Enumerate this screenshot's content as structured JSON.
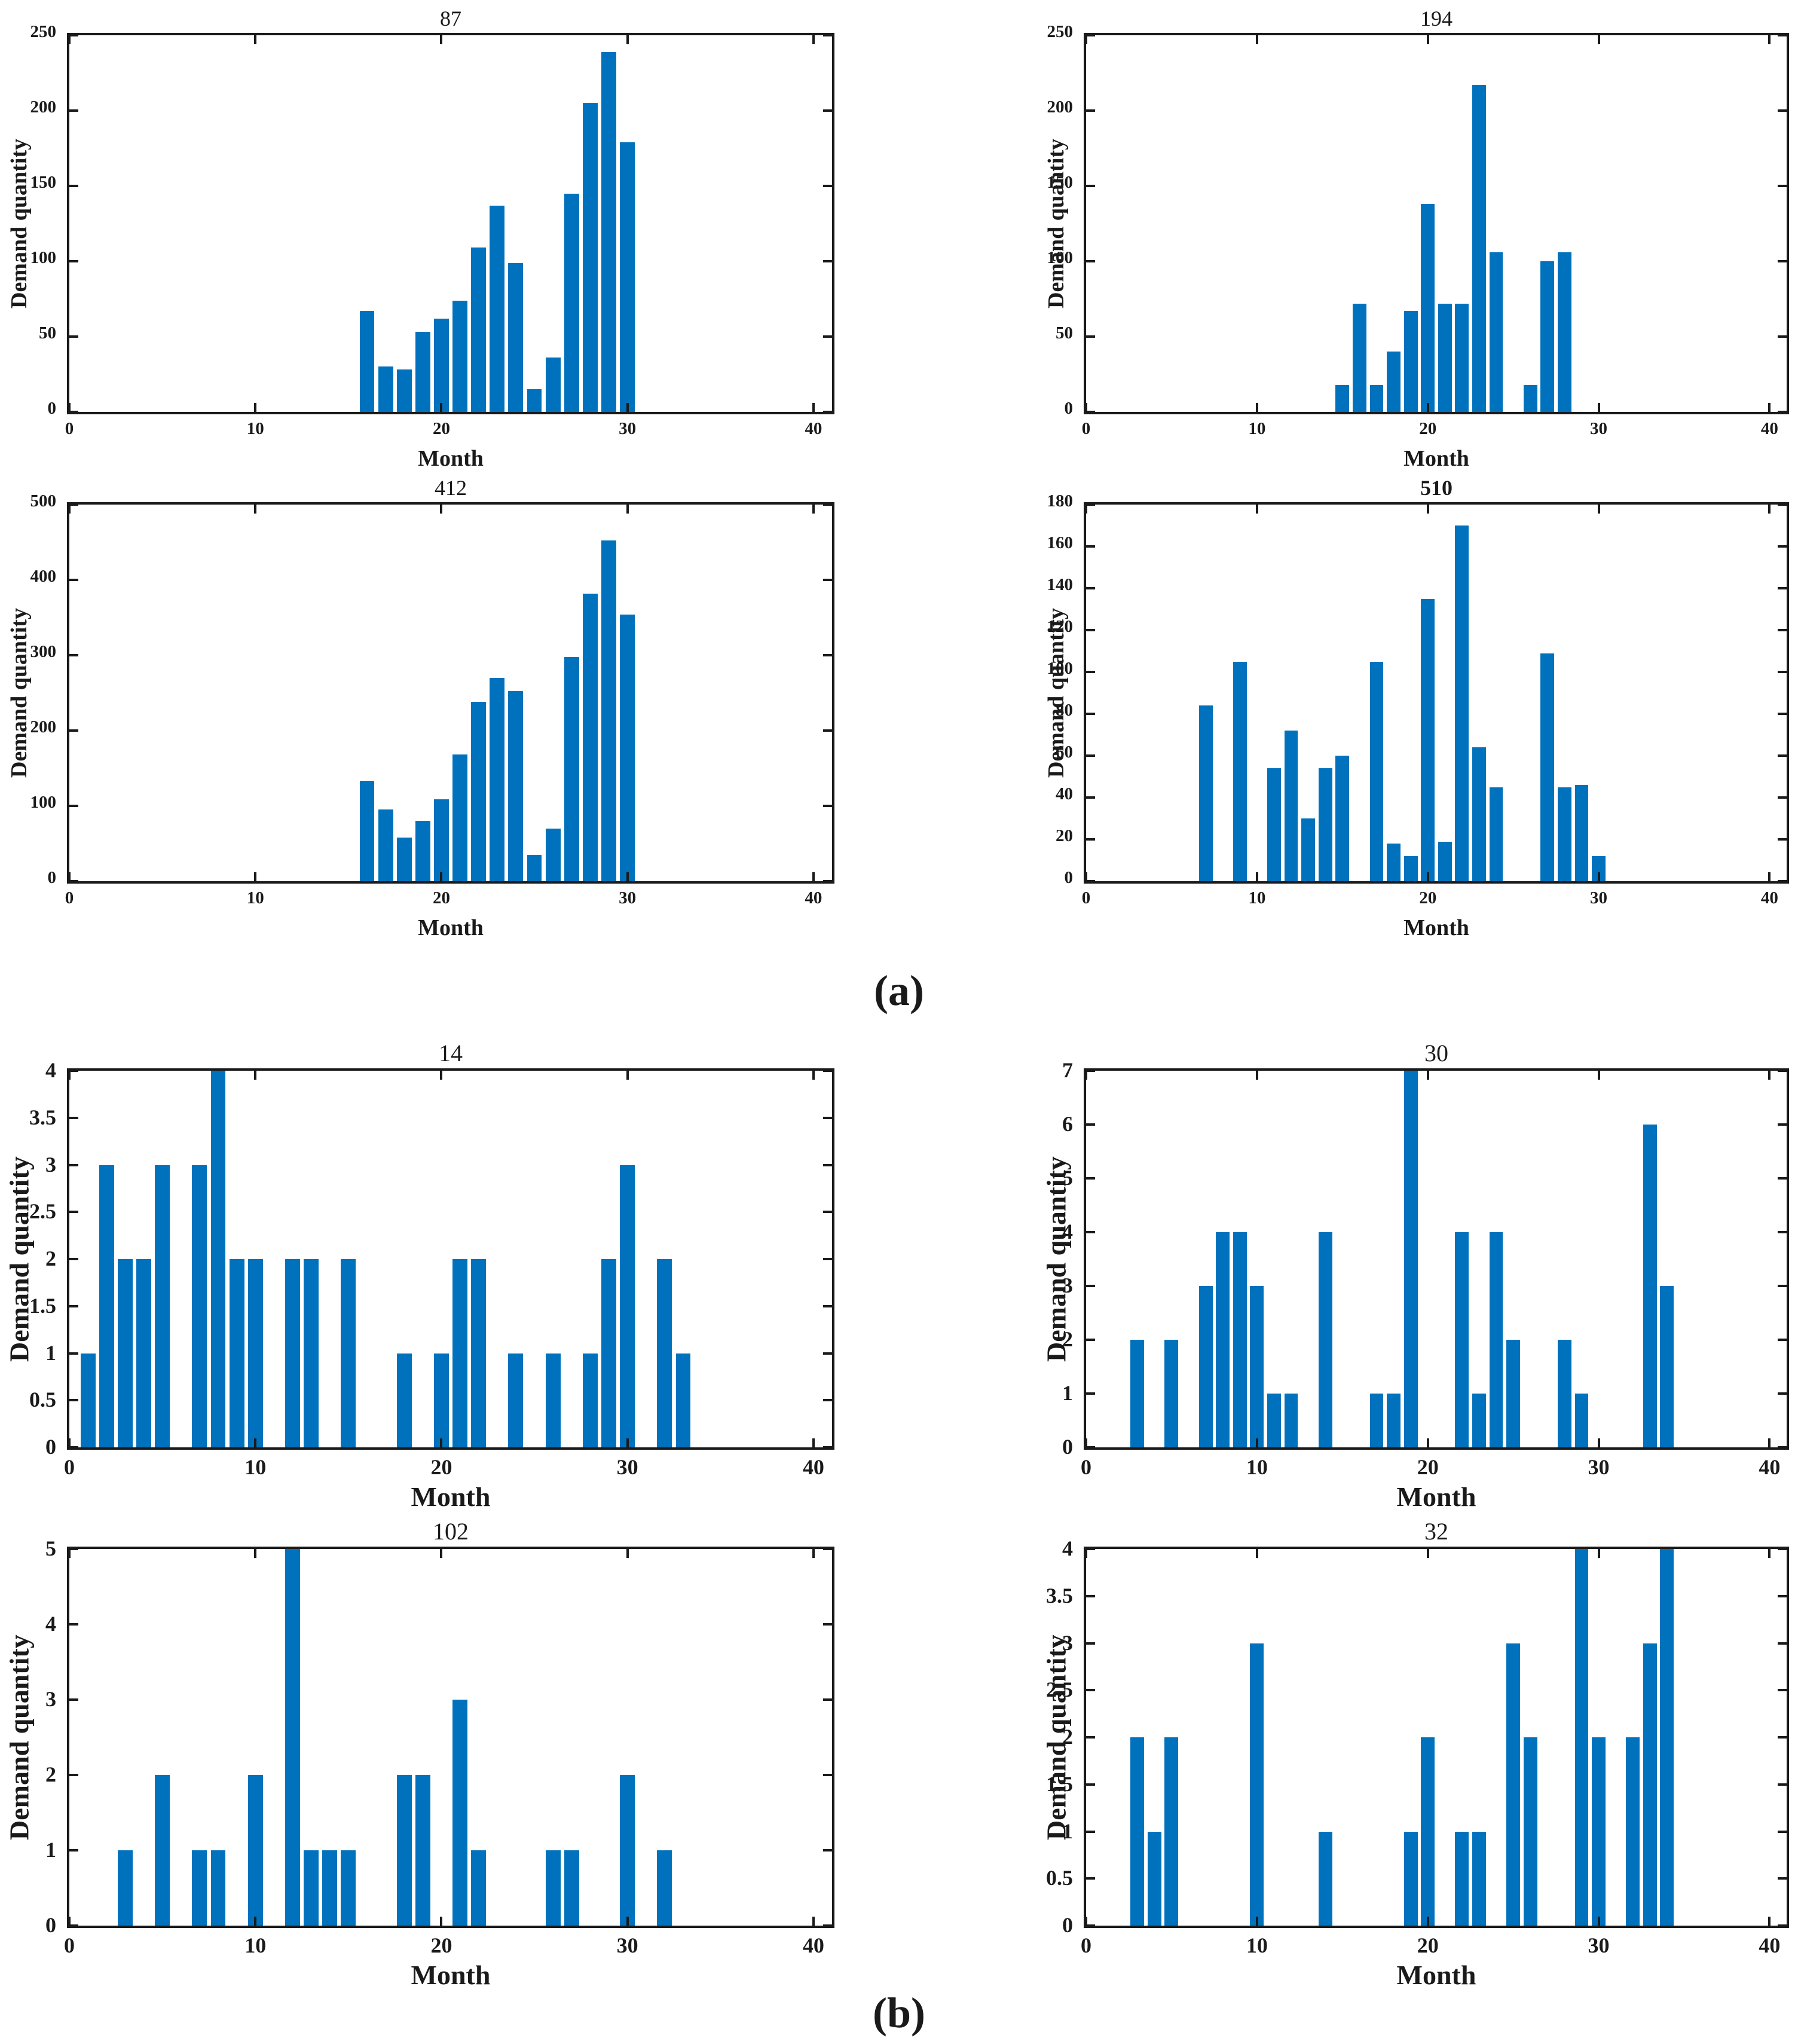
{
  "figure": {
    "bar_color": "#0072BD",
    "axis_color": "#1a1a1a",
    "background": "#ffffff"
  },
  "panel_labels": {
    "a": "(a)",
    "b": "(b)"
  },
  "chart_data": [
    {
      "type": "bar",
      "panel": "a",
      "title": "87",
      "title_bold": false,
      "xlabel": "Month",
      "ylabel": "Demand quantity",
      "xlim": [
        0,
        41
      ],
      "ylim": [
        0,
        250
      ],
      "xticks": [
        0,
        10,
        20,
        30,
        40
      ],
      "yticks": [
        0,
        50,
        100,
        150,
        200,
        250
      ],
      "x": [
        16,
        17,
        18,
        19,
        20,
        21,
        22,
        23,
        24,
        25,
        26,
        27,
        28,
        29,
        30
      ],
      "values": [
        67,
        30,
        28,
        53,
        62,
        74,
        109,
        137,
        99,
        15,
        36,
        145,
        205,
        239,
        179
      ]
    },
    {
      "type": "bar",
      "panel": "a",
      "title": "194",
      "title_bold": false,
      "xlabel": "Month",
      "ylabel": "Demand quantity",
      "xlim": [
        0,
        41
      ],
      "ylim": [
        0,
        250
      ],
      "xticks": [
        0,
        10,
        20,
        30,
        40
      ],
      "yticks": [
        0,
        50,
        100,
        150,
        200,
        250
      ],
      "x": [
        15,
        16,
        17,
        18,
        19,
        20,
        21,
        22,
        23,
        24,
        26,
        27,
        28
      ],
      "values": [
        18,
        72,
        18,
        40,
        67,
        138,
        72,
        72,
        217,
        106,
        18,
        100,
        106
      ]
    },
    {
      "type": "bar",
      "panel": "a",
      "title": "412",
      "title_bold": false,
      "xlabel": "Month",
      "ylabel": "Demand quantity",
      "xlim": [
        0,
        41
      ],
      "ylim": [
        0,
        500
      ],
      "xticks": [
        0,
        10,
        20,
        30,
        40
      ],
      "yticks": [
        0,
        100,
        200,
        300,
        400,
        500
      ],
      "x": [
        16,
        17,
        18,
        19,
        20,
        21,
        22,
        23,
        24,
        25,
        26,
        27,
        28,
        29,
        30
      ],
      "values": [
        133,
        95,
        58,
        80,
        109,
        168,
        238,
        270,
        252,
        35,
        70,
        298,
        382,
        452,
        354
      ]
    },
    {
      "type": "bar",
      "panel": "a",
      "title": "510",
      "title_bold": true,
      "xlabel": "Month",
      "ylabel": "Demand quantity",
      "xlim": [
        0,
        41
      ],
      "ylim": [
        0,
        180
      ],
      "xticks": [
        0,
        10,
        20,
        30,
        40
      ],
      "yticks": [
        0,
        20,
        40,
        60,
        80,
        100,
        120,
        140,
        160,
        180
      ],
      "x": [
        7,
        9,
        11,
        12,
        13,
        14,
        15,
        17,
        18,
        19,
        20,
        21,
        22,
        23,
        24,
        27,
        28,
        29,
        30
      ],
      "values": [
        84,
        105,
        54,
        72,
        30,
        54,
        60,
        105,
        18,
        12,
        135,
        19,
        170,
        64,
        45,
        109,
        45,
        46,
        12
      ]
    },
    {
      "type": "bar",
      "panel": "b",
      "title": "14",
      "title_bold": false,
      "xlabel": "Month",
      "ylabel": "Demand quantity",
      "xlim": [
        0,
        41
      ],
      "ylim": [
        0,
        4
      ],
      "xticks": [
        0,
        10,
        20,
        30,
        40
      ],
      "yticks": [
        0,
        0.5,
        1,
        1.5,
        2,
        2.5,
        3,
        3.5,
        4
      ],
      "x": [
        1,
        2,
        3,
        4,
        5,
        7,
        8,
        9,
        10,
        12,
        13,
        15,
        18,
        20,
        21,
        22,
        24,
        26,
        28,
        29,
        30,
        32,
        33
      ],
      "values": [
        1,
        3,
        2,
        2,
        3,
        3,
        4,
        2,
        2,
        2,
        2,
        2,
        1,
        1,
        2,
        2,
        1,
        1,
        1,
        2,
        3,
        2,
        1
      ]
    },
    {
      "type": "bar",
      "panel": "b",
      "title": "30",
      "title_bold": false,
      "xlabel": "Month",
      "ylabel": "Demand quantity",
      "xlim": [
        0,
        41
      ],
      "ylim": [
        0,
        7
      ],
      "xticks": [
        0,
        10,
        20,
        30,
        40
      ],
      "yticks": [
        0,
        1,
        2,
        3,
        4,
        5,
        6,
        7
      ],
      "x": [
        3,
        5,
        7,
        8,
        9,
        10,
        11,
        12,
        14,
        17,
        18,
        19,
        22,
        23,
        24,
        25,
        28,
        29,
        33,
        34
      ],
      "values": [
        2,
        2,
        3,
        4,
        4,
        3,
        1,
        1,
        4,
        1,
        1,
        7,
        4,
        1,
        4,
        2,
        2,
        1,
        6,
        3
      ]
    },
    {
      "type": "bar",
      "panel": "b",
      "title": "102",
      "title_bold": false,
      "xlabel": "Month",
      "ylabel": "Demand quantity",
      "xlim": [
        0,
        41
      ],
      "ylim": [
        0,
        5
      ],
      "xticks": [
        0,
        10,
        20,
        30,
        40
      ],
      "yticks": [
        0,
        1,
        2,
        3,
        4,
        5
      ],
      "x": [
        3,
        5,
        7,
        8,
        10,
        12,
        13,
        14,
        15,
        18,
        19,
        21,
        22,
        26,
        27,
        30,
        32
      ],
      "values": [
        1,
        2,
        1,
        1,
        2,
        5,
        1,
        1,
        1,
        2,
        2,
        3,
        1,
        1,
        1,
        2,
        1
      ]
    },
    {
      "type": "bar",
      "panel": "b",
      "title": "32",
      "title_bold": false,
      "xlabel": "Month",
      "ylabel": "Demand quantity",
      "xlim": [
        0,
        41
      ],
      "ylim": [
        0,
        4
      ],
      "xticks": [
        0,
        10,
        20,
        30,
        40
      ],
      "yticks": [
        0,
        0.5,
        1,
        1.5,
        2,
        2.5,
        3,
        3.5,
        4
      ],
      "x": [
        3,
        4,
        5,
        10,
        14,
        19,
        20,
        22,
        23,
        25,
        26,
        29,
        30,
        32,
        33,
        34
      ],
      "values": [
        2,
        1,
        2,
        3,
        1,
        1,
        2,
        1,
        1,
        3,
        2,
        4,
        2,
        2,
        3,
        4
      ]
    }
  ]
}
